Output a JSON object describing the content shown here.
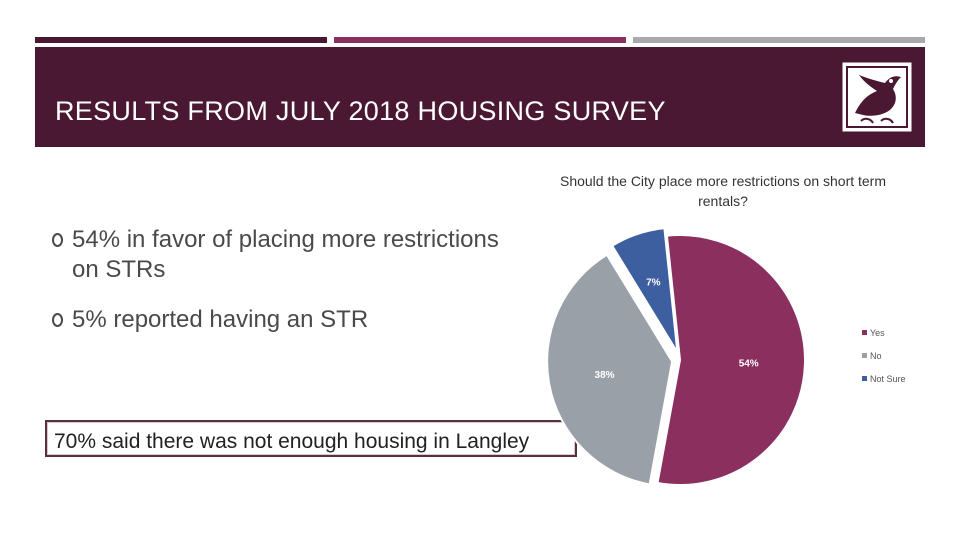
{
  "slide": {
    "title": "RESULTS FROM JULY 2018 HOUSING SURVEY",
    "bullets": [
      "54% in favor of placing more restrictions on STRs",
      "5% reported having an STR"
    ],
    "callout": "70% said there was not enough housing in Langley",
    "logo_icon": "bird-logo-icon",
    "colors": {
      "title_band": "#4a1832",
      "accent": "#8b2f5e",
      "gray": "#a7a9ac"
    }
  },
  "chart_data": {
    "type": "pie",
    "title": "Should the City place more restrictions on short term rentals?",
    "categories": [
      "Yes",
      "No",
      "Not Sure"
    ],
    "values": [
      54,
      38,
      7
    ],
    "labels": [
      "54%",
      "38%",
      "7%"
    ],
    "colors": [
      "#8b2f5e",
      "#9aa0a8",
      "#3d5fa0"
    ],
    "legend": "right"
  }
}
